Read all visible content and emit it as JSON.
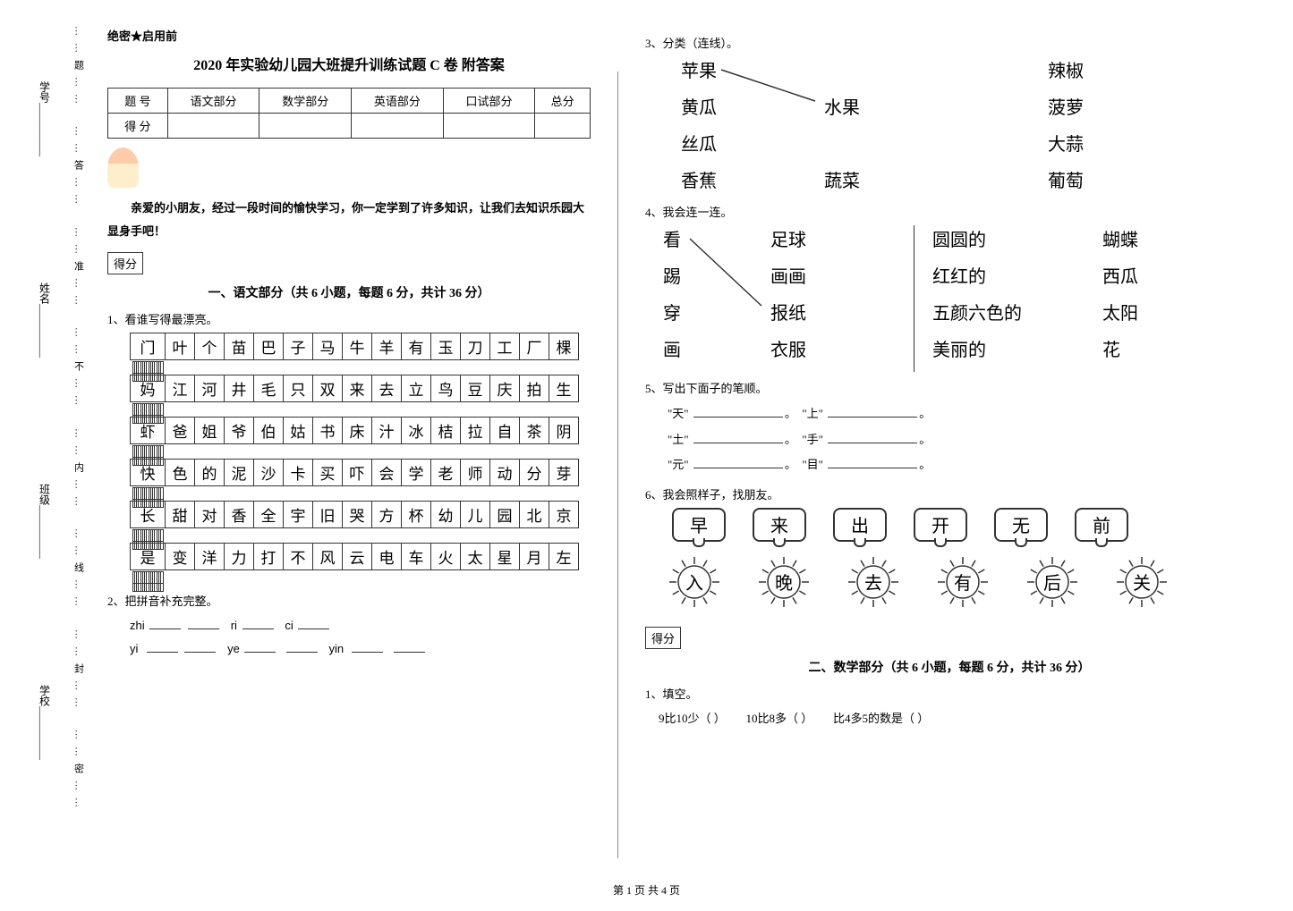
{
  "side": {
    "school": "学校",
    "class": "班级",
    "name": "姓名",
    "id": "学号",
    "dots": [
      "密",
      "封",
      "线",
      "内",
      "不",
      "准",
      "答",
      "题"
    ]
  },
  "confidential": "绝密★启用前",
  "title": "2020 年实验幼儿园大班提升训练试题 C 卷  附答案",
  "score_headers": [
    "题    号",
    "语文部分",
    "数学部分",
    "英语部分",
    "口试部分",
    "总分"
  ],
  "score_row": "得    分",
  "intro": "亲爱的小朋友，经过一段时间的愉快学习，你一定学到了许多知识，让我们去知识乐园大显身手吧！",
  "score_box": "得分",
  "section1": "一、语文部分（共 6 小题，每题 6 分，共计 36 分）",
  "q1": "1、看谁写得最漂亮。",
  "grid": [
    [
      "门",
      "叶",
      "个",
      "苗",
      "巴",
      "子",
      "马",
      "牛",
      "羊",
      "有",
      "玉",
      "刀",
      "工",
      "厂",
      "棵"
    ],
    [
      "妈",
      "江",
      "河",
      "井",
      "毛",
      "只",
      "双",
      "来",
      "去",
      "立",
      "鸟",
      "豆",
      "庆",
      "拍",
      "生"
    ],
    [
      "虾",
      "爸",
      "姐",
      "爷",
      "伯",
      "姑",
      "书",
      "床",
      "汁",
      "冰",
      "桔",
      "拉",
      "自",
      "茶",
      "阴"
    ],
    [
      "快",
      "色",
      "的",
      "泥",
      "沙",
      "卡",
      "买",
      "吓",
      "会",
      "学",
      "老",
      "师",
      "动",
      "分",
      "芽"
    ],
    [
      "长",
      "甜",
      "对",
      "香",
      "全",
      "宇",
      "旧",
      "哭",
      "方",
      "杯",
      "幼",
      "儿",
      "园",
      "北",
      "京"
    ],
    [
      "是",
      "变",
      "洋",
      "力",
      "打",
      "不",
      "风",
      "云",
      "电",
      "车",
      "火",
      "太",
      "星",
      "月",
      "左"
    ]
  ],
  "q2": "2、把拼音补充完整。",
  "pinyin1": {
    "a": "zhi",
    "b": "ri",
    "c": "ci"
  },
  "pinyin2": {
    "a": "yi",
    "b": "ye",
    "c": "yin"
  },
  "q3": "3、分类（连线）。",
  "match1": {
    "left": [
      "苹果",
      "黄瓜",
      "丝瓜",
      "香蕉"
    ],
    "mid": [
      "",
      "水果",
      "",
      "蔬菜"
    ],
    "right": [
      "辣椒",
      "菠萝",
      "大蒜",
      "葡萄"
    ]
  },
  "q4": "4、我会连一连。",
  "match2a": {
    "l": [
      "看",
      "踢",
      "穿",
      "画"
    ],
    "r": [
      "足球",
      "画画",
      "报纸",
      "衣服"
    ]
  },
  "match2b": {
    "l": [
      "圆圆的",
      "红红的",
      "五颜六色的",
      "美丽的"
    ],
    "r": [
      "蝴蝶",
      "西瓜",
      "太阳",
      "花"
    ]
  },
  "q5": "5、写出下面子的笔顺。",
  "strokes": [
    [
      "天",
      "上"
    ],
    [
      "土",
      "手"
    ],
    [
      "元",
      "目"
    ]
  ],
  "q6": "6、我会照样子，找朋友。",
  "bubbles_top": [
    "早",
    "来",
    "出",
    "开",
    "无",
    "前"
  ],
  "bubbles_bot": [
    "入",
    "晚",
    "去",
    "有",
    "后",
    "关"
  ],
  "section2": "二、数学部分（共 6 小题，每题 6 分，共计 36 分）",
  "m_q1": "1、填空。",
  "m_fill": {
    "a": "9比10少（        ）",
    "b": "10比8多（        ）",
    "c": "比4多5的数是（        ）"
  },
  "footer": "第 1 页 共 4 页"
}
